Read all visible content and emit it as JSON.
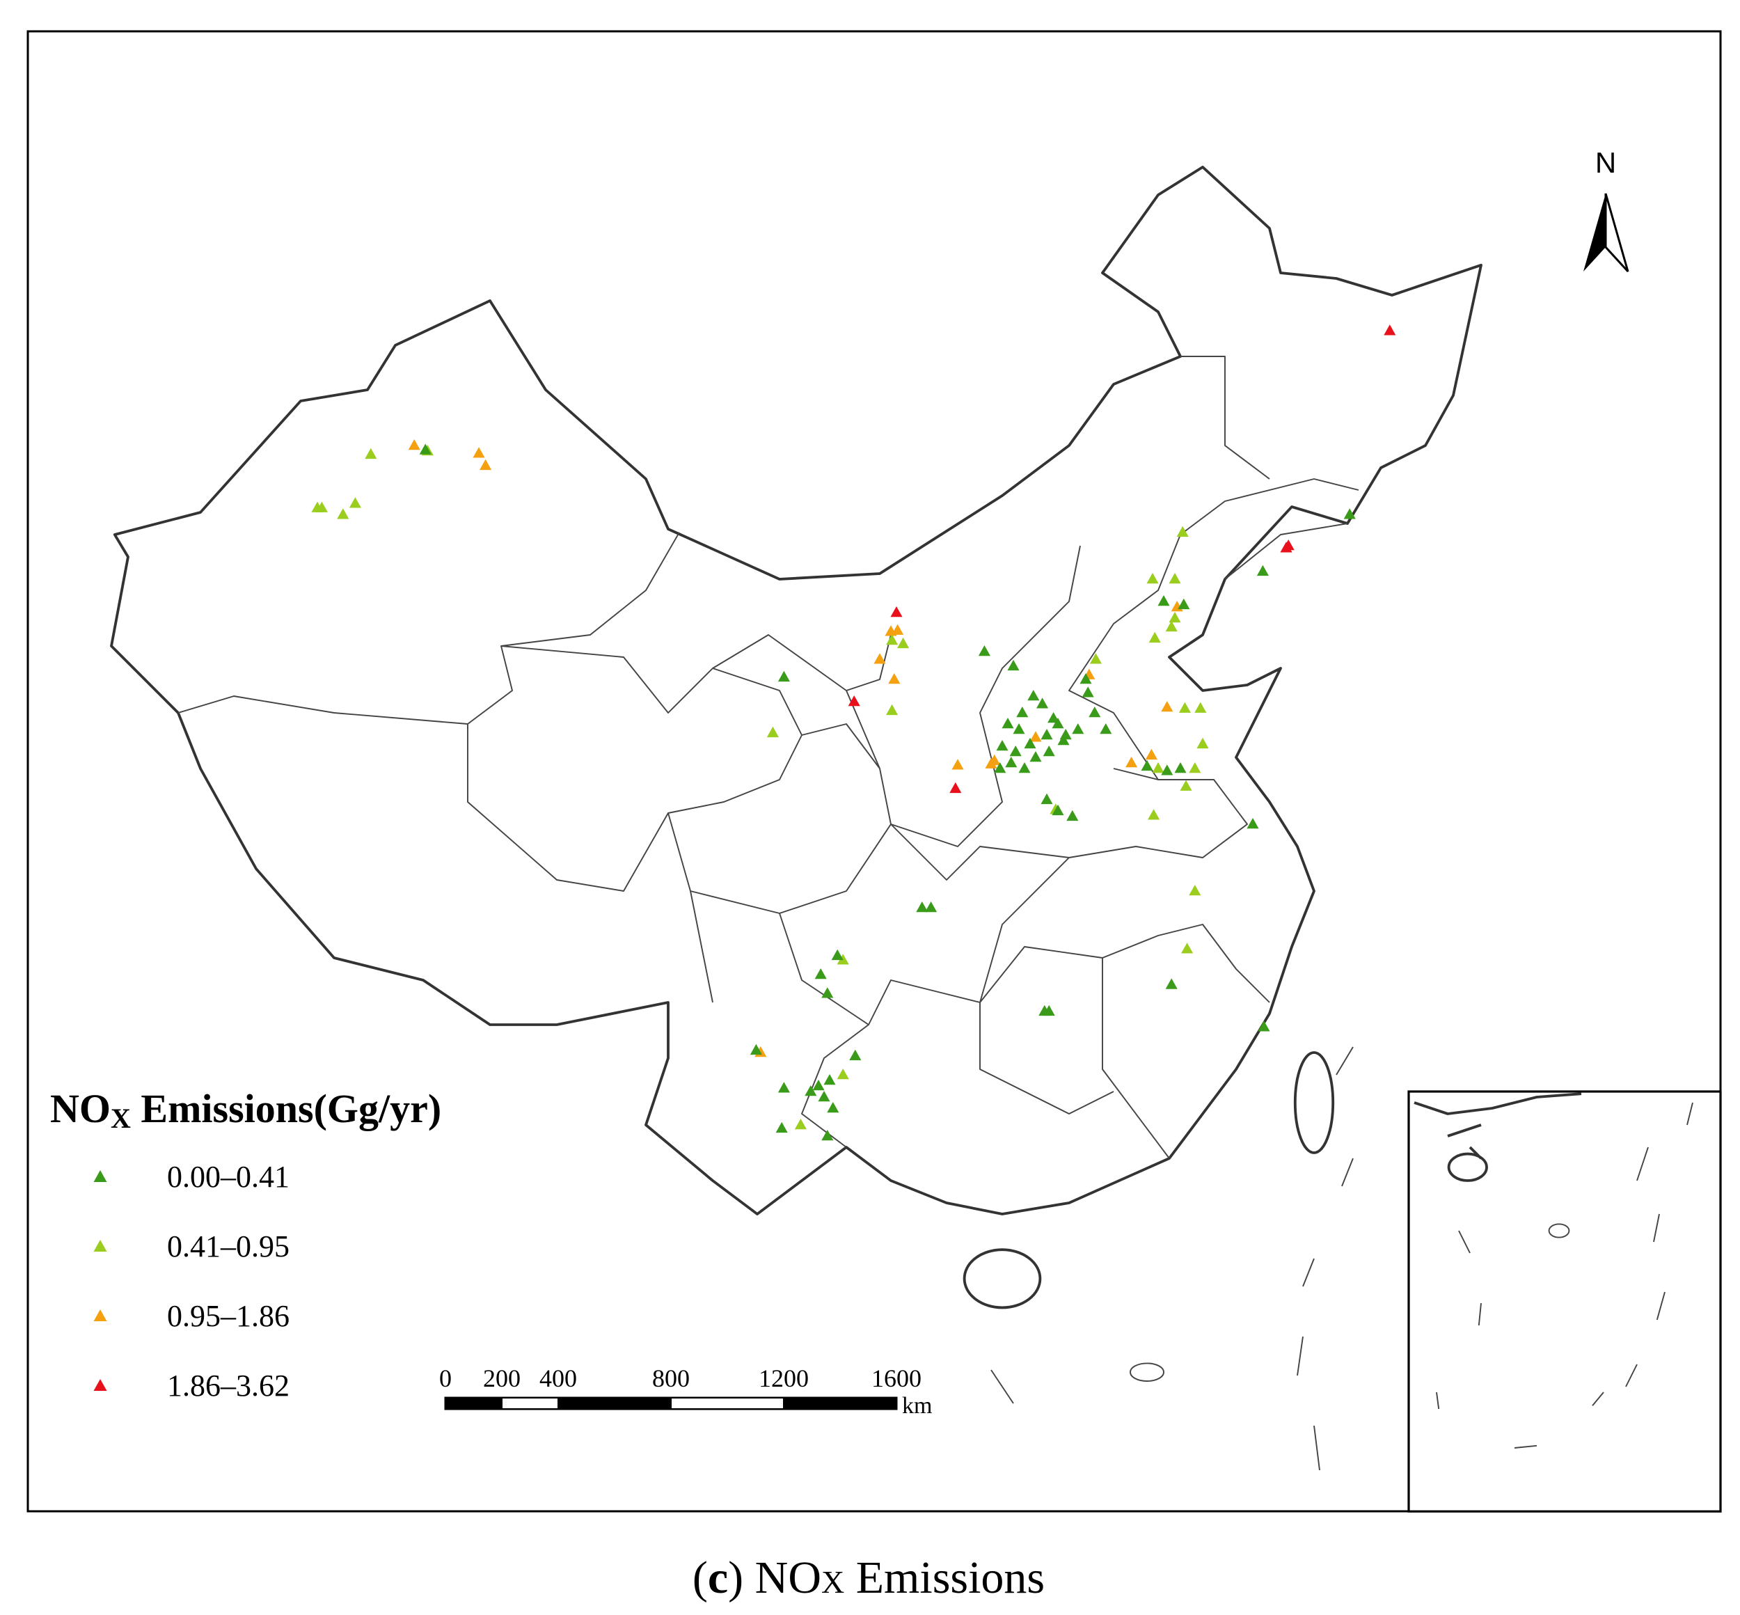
{
  "legend": {
    "title": {
      "main": "NO",
      "sub": "X",
      "rest": " Emissions(Gg/yr)"
    },
    "items": [
      {
        "label": "0.00–0.41",
        "color": "#3a9a1a"
      },
      {
        "label": "0.41–0.95",
        "color": "#9acd1e"
      },
      {
        "label": "0.95–1.86",
        "color": "#f5a011"
      },
      {
        "label": "1.86–3.62",
        "color": "#e8101a"
      }
    ]
  },
  "compass": "N",
  "scale_bar": {
    "ticks": [
      0,
      200,
      400,
      800,
      1200,
      1600
    ],
    "unit": "km"
  },
  "caption": {
    "open": "(",
    "letter": "c",
    "close": ")",
    "main": " NO",
    "sub": "X",
    "rest": " Emissions"
  }
}
